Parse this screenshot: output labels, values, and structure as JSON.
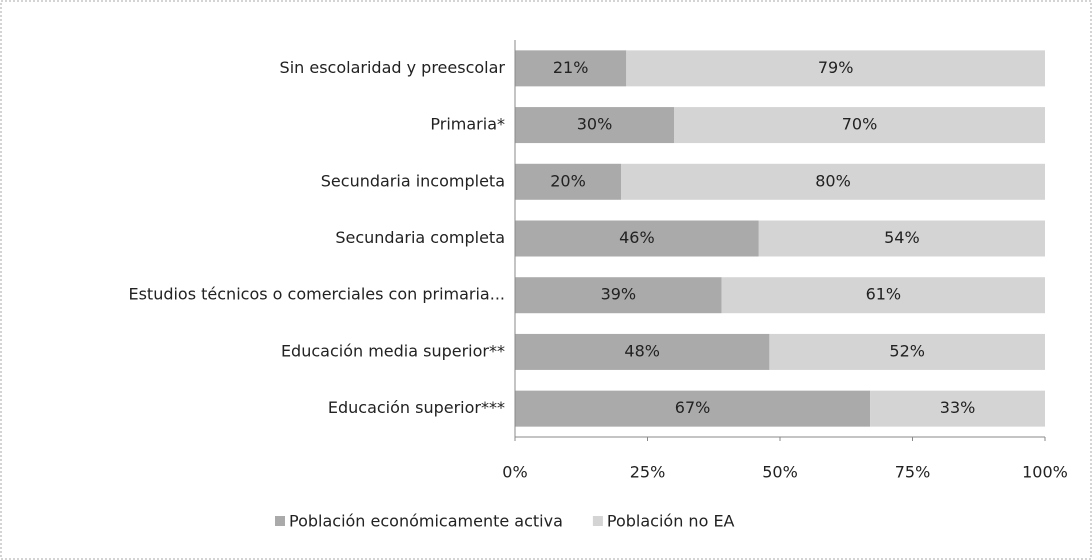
{
  "chart_data": {
    "type": "stacked_barh",
    "categories": [
      "Sin escolaridad y preescolar",
      "Primaria*",
      "Secundaria incompleta",
      "Secundaria completa",
      "Estudios técnicos o comerciales con primaria...",
      "Educación media superior**",
      "Educación superior***"
    ],
    "series": [
      {
        "name": "Población económicamente activa",
        "color": "#aaaaaa",
        "values": [
          21,
          30,
          20,
          46,
          39,
          48,
          67
        ],
        "value_labels": [
          "21%",
          "30%",
          "20%",
          "46%",
          "39%",
          "48%",
          "67%"
        ]
      },
      {
        "name": "Población no EA",
        "color": "#d4d4d4",
        "values": [
          79,
          70,
          80,
          54,
          61,
          52,
          33
        ],
        "value_labels": [
          "79%",
          "70%",
          "80%",
          "54%",
          "61%",
          "52%",
          "33%"
        ]
      }
    ],
    "xlim": [
      0,
      100
    ],
    "xticks": [
      {
        "value": 0,
        "label": "0%"
      },
      {
        "value": 25,
        "label": "25%"
      },
      {
        "value": 50,
        "label": "50%"
      },
      {
        "value": 75,
        "label": "75%"
      },
      {
        "value": 100,
        "label": "100%"
      }
    ],
    "legend": "bottom"
  }
}
